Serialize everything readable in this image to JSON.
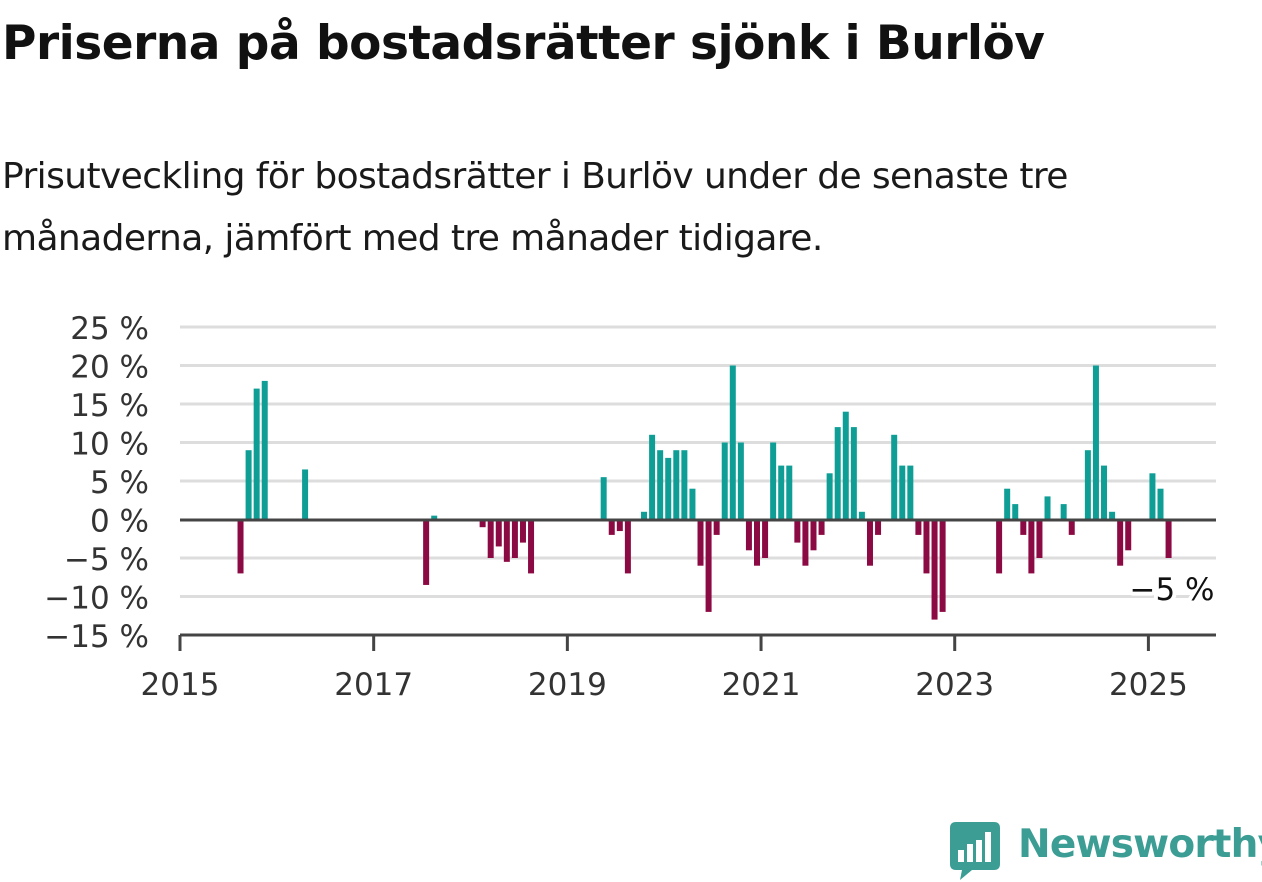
{
  "title": "Priserna på bostadsrätter sjönk i Burlöv",
  "subtitle": "Prisutveckling för bostadsrätter i Burlöv under de senaste tre månaderna, jämfört med tre månader tidigare.",
  "colors": {
    "positive": "#0e9e96",
    "negative": "#8c0a44",
    "grid": "#dddddd",
    "axis": "#444444",
    "brand": "#3b9d94"
  },
  "chart_data": {
    "type": "bar",
    "x_unit": "month",
    "xlim": [
      "2015-01",
      "2025-07"
    ],
    "ylim": [
      -15,
      25
    ],
    "y_ticks": [
      {
        "value": 25,
        "label": "25 %"
      },
      {
        "value": 20,
        "label": "20 %"
      },
      {
        "value": 15,
        "label": "15 %"
      },
      {
        "value": 10,
        "label": "10 %"
      },
      {
        "value": 5,
        "label": "5 %"
      },
      {
        "value": 0,
        "label": "0 %"
      },
      {
        "value": -5,
        "label": "−5 %"
      },
      {
        "value": -10,
        "label": "−10 %"
      },
      {
        "value": -15,
        "label": "−15 %"
      }
    ],
    "x_ticks": [
      {
        "value": "2015-01",
        "label": "2015"
      },
      {
        "value": "2017-01",
        "label": "2017"
      },
      {
        "value": "2019-01",
        "label": "2019"
      },
      {
        "value": "2021-01",
        "label": "2021"
      },
      {
        "value": "2023-01",
        "label": "2023"
      },
      {
        "value": "2025-01",
        "label": "2025"
      }
    ],
    "grid": true,
    "annotation": {
      "x": "2025-02",
      "y": -5,
      "label": "−5 %"
    },
    "series": [
      {
        "points": [
          {
            "x": "2015-08",
            "y": -7
          },
          {
            "x": "2015-09",
            "y": 9
          },
          {
            "x": "2015-10",
            "y": 17
          },
          {
            "x": "2015-11",
            "y": 18
          },
          {
            "x": "2016-04",
            "y": 6.5
          },
          {
            "x": "2017-07",
            "y": -8.5
          },
          {
            "x": "2017-08",
            "y": 0.5
          },
          {
            "x": "2018-02",
            "y": -1
          },
          {
            "x": "2018-03",
            "y": -5
          },
          {
            "x": "2018-04",
            "y": -3.5
          },
          {
            "x": "2018-05",
            "y": -5.5
          },
          {
            "x": "2018-06",
            "y": -5
          },
          {
            "x": "2018-07",
            "y": -3
          },
          {
            "x": "2018-08",
            "y": -7
          },
          {
            "x": "2019-05",
            "y": 5.5
          },
          {
            "x": "2019-06",
            "y": -2
          },
          {
            "x": "2019-07",
            "y": -1.5
          },
          {
            "x": "2019-08",
            "y": -7
          },
          {
            "x": "2019-10",
            "y": 1
          },
          {
            "x": "2019-11",
            "y": 11
          },
          {
            "x": "2019-12",
            "y": 9
          },
          {
            "x": "2020-01",
            "y": 8
          },
          {
            "x": "2020-02",
            "y": 9
          },
          {
            "x": "2020-03",
            "y": 9
          },
          {
            "x": "2020-04",
            "y": 4
          },
          {
            "x": "2020-05",
            "y": -6
          },
          {
            "x": "2020-06",
            "y": -12
          },
          {
            "x": "2020-07",
            "y": -2
          },
          {
            "x": "2020-08",
            "y": 10
          },
          {
            "x": "2020-09",
            "y": 20
          },
          {
            "x": "2020-10",
            "y": 10
          },
          {
            "x": "2020-11",
            "y": -4
          },
          {
            "x": "2020-12",
            "y": -6
          },
          {
            "x": "2021-01",
            "y": -5
          },
          {
            "x": "2021-02",
            "y": 10
          },
          {
            "x": "2021-03",
            "y": 7
          },
          {
            "x": "2021-04",
            "y": 7
          },
          {
            "x": "2021-05",
            "y": -3
          },
          {
            "x": "2021-06",
            "y": -6
          },
          {
            "x": "2021-07",
            "y": -4
          },
          {
            "x": "2021-08",
            "y": -2
          },
          {
            "x": "2021-09",
            "y": 6
          },
          {
            "x": "2021-10",
            "y": 12
          },
          {
            "x": "2021-11",
            "y": 14
          },
          {
            "x": "2021-12",
            "y": 12
          },
          {
            "x": "2022-01",
            "y": 1
          },
          {
            "x": "2022-02",
            "y": -6
          },
          {
            "x": "2022-03",
            "y": -2
          },
          {
            "x": "2022-05",
            "y": 11
          },
          {
            "x": "2022-06",
            "y": 7
          },
          {
            "x": "2022-07",
            "y": 7
          },
          {
            "x": "2022-08",
            "y": -2
          },
          {
            "x": "2022-09",
            "y": -7
          },
          {
            "x": "2022-10",
            "y": -13
          },
          {
            "x": "2022-11",
            "y": -12
          },
          {
            "x": "2023-06",
            "y": -7
          },
          {
            "x": "2023-07",
            "y": 4
          },
          {
            "x": "2023-08",
            "y": 2
          },
          {
            "x": "2023-09",
            "y": -2
          },
          {
            "x": "2023-10",
            "y": -7
          },
          {
            "x": "2023-11",
            "y": -5
          },
          {
            "x": "2023-12",
            "y": 3
          },
          {
            "x": "2024-02",
            "y": 2
          },
          {
            "x": "2024-03",
            "y": -2
          },
          {
            "x": "2024-05",
            "y": 9
          },
          {
            "x": "2024-06",
            "y": 20
          },
          {
            "x": "2024-07",
            "y": 7
          },
          {
            "x": "2024-08",
            "y": 1
          },
          {
            "x": "2024-09",
            "y": -6
          },
          {
            "x": "2024-10",
            "y": -4
          },
          {
            "x": "2025-01",
            "y": 6
          },
          {
            "x": "2025-02",
            "y": 4
          },
          {
            "x": "2025-03",
            "y": -5
          }
        ]
      }
    ]
  },
  "logo": {
    "text": "Newsworthy",
    "icon": "newsworthy-bar-chart-icon"
  }
}
